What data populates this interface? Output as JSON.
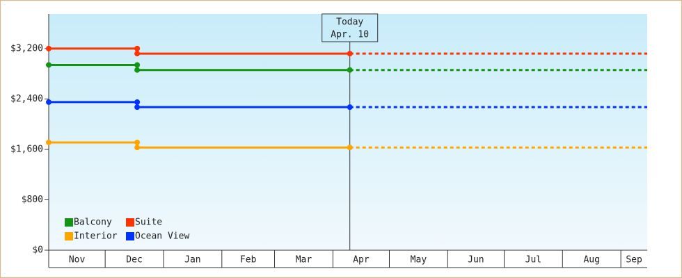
{
  "chart_data": {
    "type": "line",
    "annotation": {
      "x": 160,
      "lines": [
        "Today",
        "Apr. 10"
      ]
    },
    "xlim": [
      0,
      318
    ],
    "xticks": [
      {
        "value": 0,
        "label": "Nov"
      },
      {
        "value": 30,
        "label": "Dec"
      },
      {
        "value": 61,
        "label": "Jan"
      },
      {
        "value": 92,
        "label": "Feb"
      },
      {
        "value": 120,
        "label": "Mar"
      },
      {
        "value": 151,
        "label": "Apr"
      },
      {
        "value": 181,
        "label": "May"
      },
      {
        "value": 212,
        "label": "Jun"
      },
      {
        "value": 242,
        "label": "Jul"
      },
      {
        "value": 273,
        "label": "Aug"
      },
      {
        "value": 304,
        "label": "Sep"
      }
    ],
    "ylim": [
      0,
      3750
    ],
    "yticks": [
      {
        "value": 0,
        "label": "$0"
      },
      {
        "value": 800,
        "label": "$800"
      },
      {
        "value": 1600,
        "label": "$1,600"
      },
      {
        "value": 2400,
        "label": "$2,400"
      },
      {
        "value": 3200,
        "label": "$3,200"
      }
    ],
    "series": [
      {
        "name": "Balcony",
        "color": "#139413",
        "x": [
          0,
          47,
          47,
          160
        ],
        "values": [
          2940,
          2940,
          2860,
          2860
        ]
      },
      {
        "name": "Suite",
        "color": "#ff3300",
        "x": [
          0,
          47,
          47,
          160
        ],
        "values": [
          3200,
          3200,
          3120,
          3120
        ]
      },
      {
        "name": "Interior",
        "color": "#ffa500",
        "x": [
          0,
          47,
          47,
          160
        ],
        "values": [
          1710,
          1710,
          1630,
          1630
        ]
      },
      {
        "name": "Ocean View",
        "color": "#0033ff",
        "x": [
          0,
          47,
          47,
          160
        ],
        "values": [
          2350,
          2350,
          2270,
          2270
        ]
      }
    ]
  }
}
